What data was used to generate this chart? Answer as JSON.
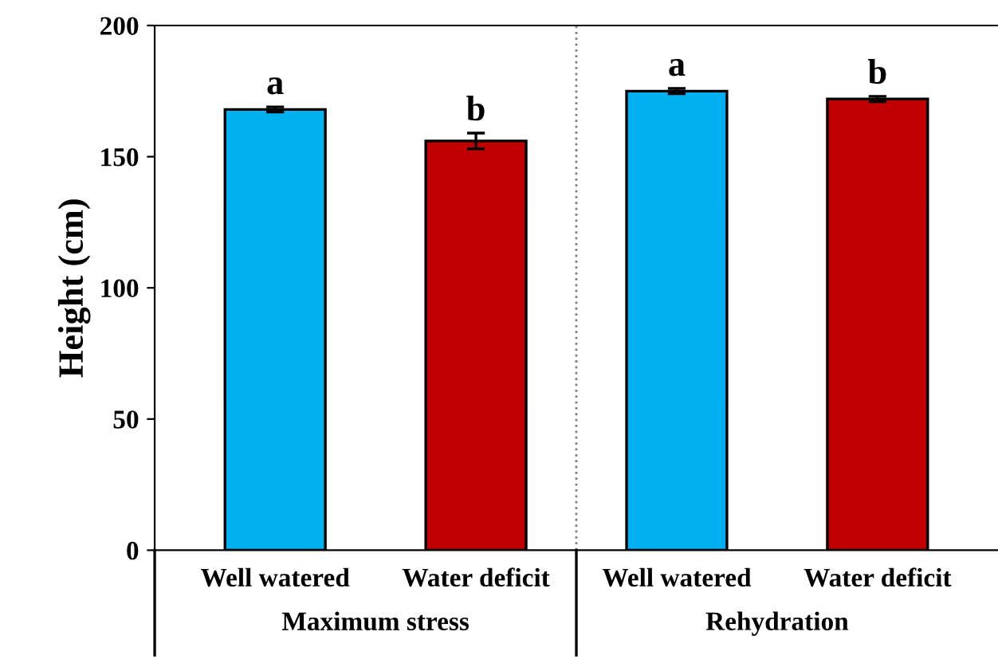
{
  "chart_data": {
    "type": "bar",
    "ylabel": "Height (cm)",
    "categories": [
      "Well watered",
      "Water deficit",
      "Well watered",
      "Water deficit"
    ],
    "values": [
      168,
      156,
      175,
      172
    ],
    "errors": [
      1,
      3,
      1,
      1
    ],
    "colors": [
      "#00b0f0",
      "#c00000",
      "#00b0f0",
      "#c00000"
    ],
    "ylim": [
      0,
      200
    ],
    "yticks": [
      0,
      50,
      100,
      150,
      200
    ],
    "grid": false,
    "annotations": [
      "a",
      "b",
      "a",
      "b",
      "Maximum stress",
      "Rehydration"
    ]
  }
}
